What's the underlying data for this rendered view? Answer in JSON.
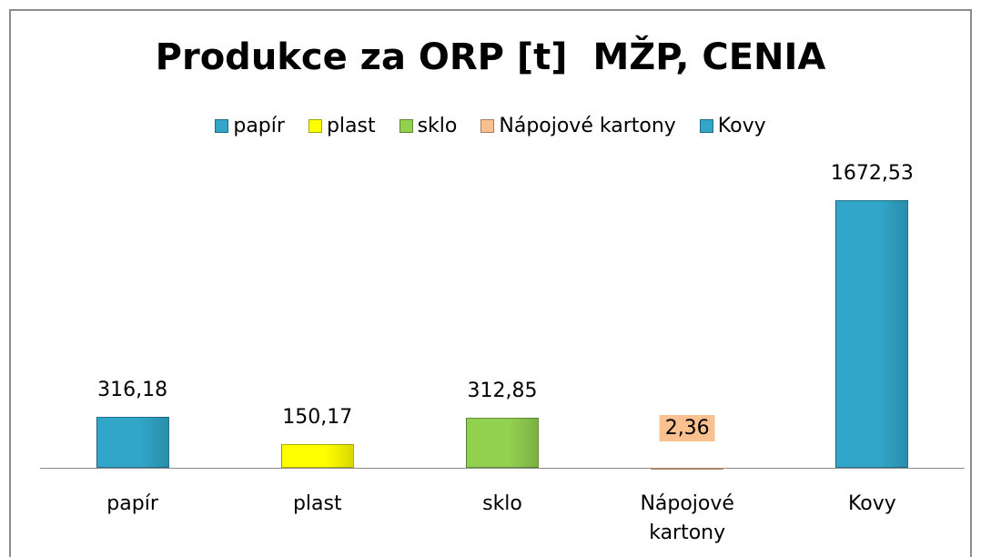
{
  "chart_data": {
    "type": "bar",
    "title": "Produkce za ORP [t]  MŽP, CENIA",
    "categories": [
      "papír",
      "plast",
      "sklo",
      "Nápojové kartony",
      "Kovy"
    ],
    "values": [
      316.18,
      150.17,
      312.85,
      2.36,
      1672.53
    ],
    "value_labels": [
      "316,18",
      "150,17",
      "312,85",
      "2,36",
      "1672,53"
    ],
    "colors": [
      "#31a6c9",
      "#ffff00",
      "#92d050",
      "#fac090",
      "#31a6c9"
    ],
    "legend": "top"
  }
}
